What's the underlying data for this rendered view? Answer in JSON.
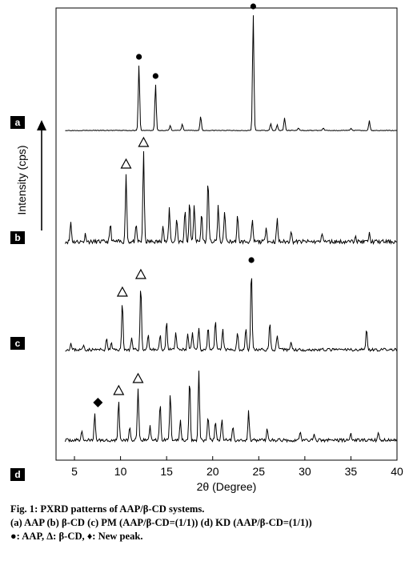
{
  "chart_data": {
    "type": "line",
    "xlabel": "2θ (Degree)",
    "ylabel": "Intensity (cps)",
    "xlim": [
      3,
      40
    ],
    "xticks": [
      5,
      10,
      15,
      20,
      25,
      30,
      35,
      40
    ],
    "grid": false,
    "legend": "none",
    "markers": {
      "aap": "●",
      "bcd": "△",
      "new": "◆"
    },
    "series": [
      {
        "panel": "a",
        "baseline": 2,
        "peaks": [
          [
            12.0,
            82,
            "aap"
          ],
          [
            13.8,
            58,
            "aap"
          ],
          [
            15.4,
            6
          ],
          [
            16.7,
            8
          ],
          [
            18.7,
            18
          ],
          [
            24.4,
            145,
            "aap"
          ],
          [
            26.3,
            9
          ],
          [
            27.0,
            7
          ],
          [
            27.8,
            16
          ],
          [
            29.3,
            3
          ],
          [
            32.0,
            3
          ],
          [
            35.0,
            3
          ],
          [
            37.0,
            12
          ]
        ]
      },
      {
        "panel": "b",
        "baseline": 10,
        "peaks": [
          [
            4.6,
            25
          ],
          [
            6.2,
            10
          ],
          [
            8.9,
            22
          ],
          [
            10.6,
            85,
            "bcd"
          ],
          [
            11.7,
            20
          ],
          [
            12.5,
            112,
            "bcd"
          ],
          [
            14.6,
            22
          ],
          [
            15.3,
            42
          ],
          [
            16.1,
            30
          ],
          [
            17.0,
            42
          ],
          [
            17.5,
            50
          ],
          [
            18.0,
            48
          ],
          [
            18.8,
            36
          ],
          [
            19.5,
            80
          ],
          [
            20.6,
            46
          ],
          [
            21.3,
            40
          ],
          [
            22.7,
            32
          ],
          [
            24.3,
            26
          ],
          [
            25.8,
            20
          ],
          [
            27.0,
            28
          ],
          [
            28.5,
            14
          ],
          [
            31.9,
            12
          ],
          [
            35.5,
            10
          ],
          [
            37.0,
            10
          ]
        ]
      },
      {
        "panel": "c",
        "baseline": 4,
        "peaks": [
          [
            4.6,
            8
          ],
          [
            6.0,
            6
          ],
          [
            8.5,
            14
          ],
          [
            9.0,
            8
          ],
          [
            10.2,
            60,
            "bcd"
          ],
          [
            11.2,
            14
          ],
          [
            12.2,
            82,
            "bcd"
          ],
          [
            13.0,
            20
          ],
          [
            14.3,
            18
          ],
          [
            15.0,
            36
          ],
          [
            16.0,
            22
          ],
          [
            17.3,
            20
          ],
          [
            17.8,
            22
          ],
          [
            18.5,
            28
          ],
          [
            19.5,
            30
          ],
          [
            20.3,
            36
          ],
          [
            21.1,
            26
          ],
          [
            22.7,
            22
          ],
          [
            23.6,
            28
          ],
          [
            24.2,
            102,
            "aap"
          ],
          [
            26.2,
            34
          ],
          [
            27.0,
            18
          ],
          [
            28.5,
            10
          ],
          [
            36.7,
            28
          ]
        ]
      },
      {
        "panel": "d",
        "baseline": 5,
        "peaks": [
          [
            5.8,
            12
          ],
          [
            7.2,
            32,
            "new"
          ],
          [
            9.8,
            50,
            "bcd"
          ],
          [
            11.0,
            16
          ],
          [
            11.9,
            65,
            "bcd"
          ],
          [
            13.2,
            18
          ],
          [
            14.3,
            46
          ],
          [
            15.4,
            60
          ],
          [
            16.5,
            26
          ],
          [
            17.5,
            78
          ],
          [
            18.5,
            88
          ],
          [
            19.5,
            28
          ],
          [
            20.3,
            24
          ],
          [
            21.0,
            28
          ],
          [
            22.2,
            18
          ],
          [
            23.9,
            36
          ],
          [
            25.9,
            14
          ],
          [
            29.5,
            10
          ],
          [
            31.0,
            8
          ],
          [
            35.0,
            8
          ],
          [
            38.0,
            10
          ]
        ]
      }
    ]
  },
  "caption": {
    "line1": "Fig. 1: PXRD patterns of AAP/β-CD systems.",
    "line2": "(a) AAP (b) β-CD (c) PM (AAP/β-CD=(1/1)) (d) KD (AAP/β-CD=(1/1))",
    "line3": "●: AAP, Δ: β-CD, ♦: New peak."
  }
}
